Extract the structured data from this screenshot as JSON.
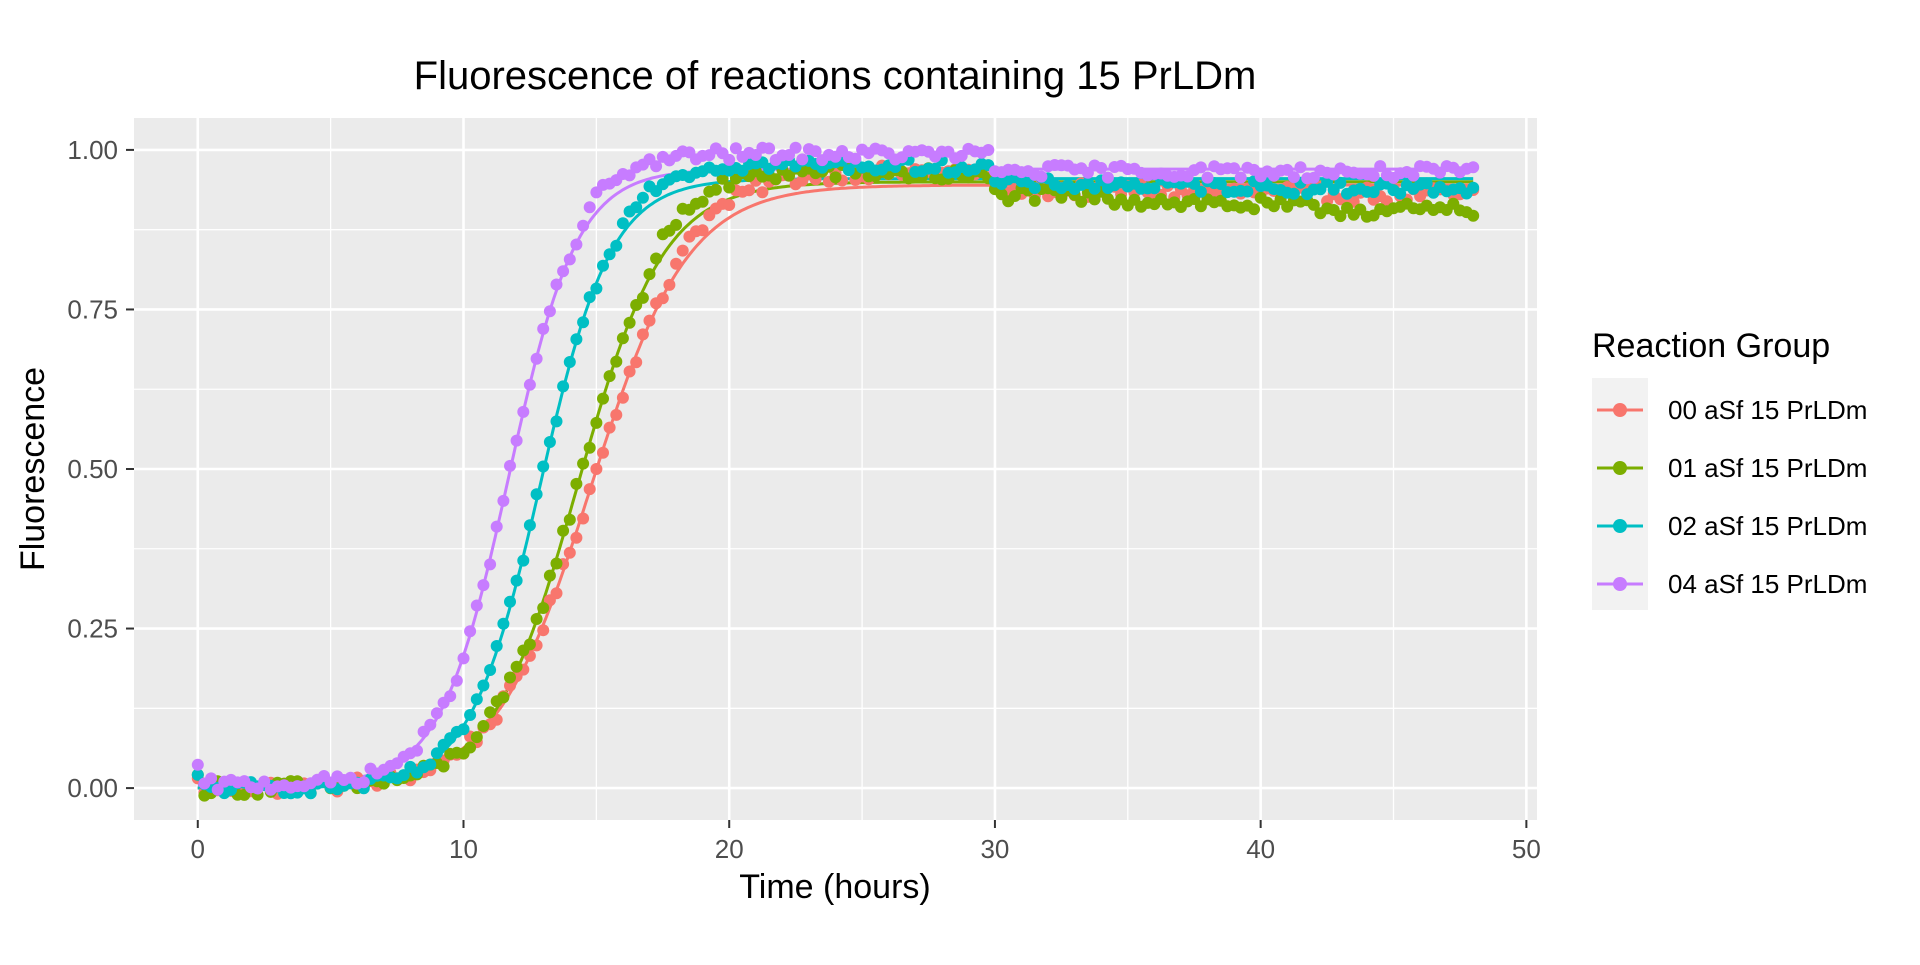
{
  "chart_data": {
    "type": "scatter",
    "title": "Fluorescence of reactions containing 15 PrLDm",
    "xlabel": "Time (hours)",
    "ylabel": "Fluorescence",
    "xlim": [
      -2.4,
      50.4
    ],
    "ylim": [
      -0.05,
      1.05
    ],
    "x_ticks": [
      0,
      10,
      20,
      30,
      40,
      50
    ],
    "x_tick_labels": [
      "0",
      "10",
      "20",
      "30",
      "40",
      "50"
    ],
    "y_ticks": [
      0.0,
      0.25,
      0.5,
      0.75,
      1.0
    ],
    "y_tick_labels": [
      "0.00",
      "0.25",
      "0.50",
      "0.75",
      "1.00"
    ],
    "grid": true,
    "legend_position": "right",
    "legend_title": "Reaction Group",
    "point_spacing_hours": 0.25,
    "series": [
      {
        "name": "00 aSf 15 PrLDm",
        "color": "#F8766D",
        "t_half": 14.8,
        "slope": 0.55,
        "base": 0.0,
        "plateau": 0.945,
        "late_plateau": 0.93,
        "start_value": 0.01,
        "noise": 0.012
      },
      {
        "name": "01 aSf 15 PrLDm",
        "color": "#7CAE00",
        "t_half": 14.3,
        "slope": 0.62,
        "base": 0.0,
        "plateau": 0.95,
        "late_plateau": 0.905,
        "start_value": 0.015,
        "noise": 0.012
      },
      {
        "name": "02 aSf 15 PrLDm",
        "color": "#00BFC4",
        "t_half": 12.9,
        "slope": 0.75,
        "base": 0.0,
        "plateau": 0.955,
        "late_plateau": 0.94,
        "start_value": 0.015,
        "noise": 0.01
      },
      {
        "name": "04 aSf 15 PrLDm",
        "color": "#C77CFF",
        "t_half": 11.7,
        "slope": 0.78,
        "base": 0.005,
        "plateau": 0.97,
        "late_plateau": 0.965,
        "start_value": 0.03,
        "noise": 0.01
      }
    ]
  }
}
